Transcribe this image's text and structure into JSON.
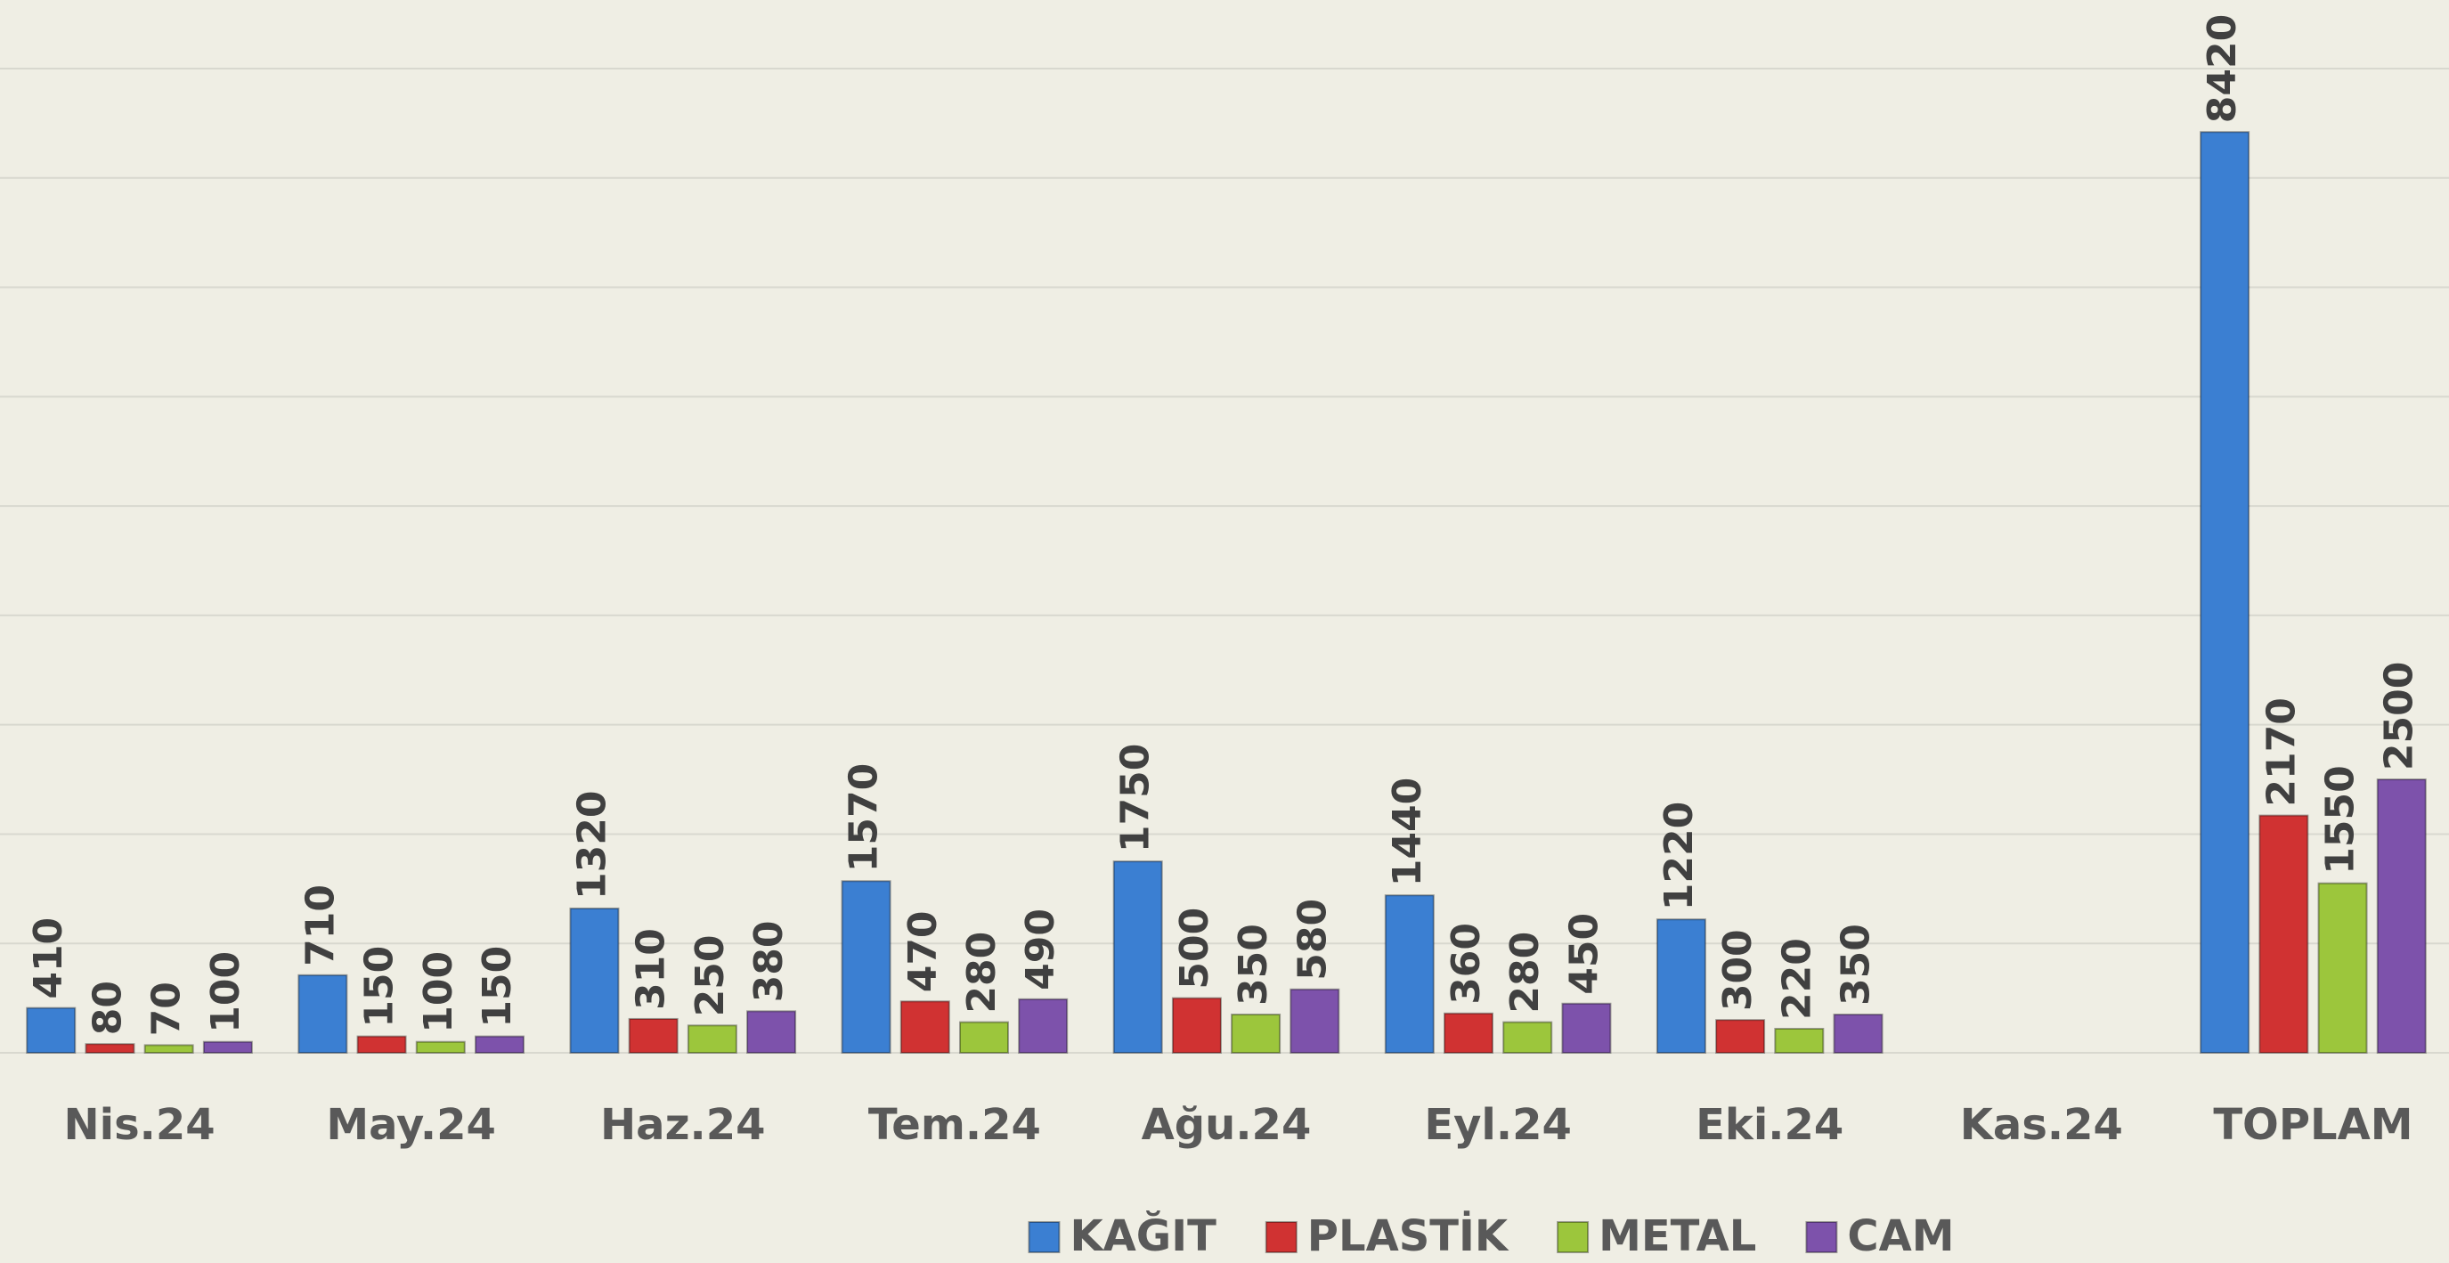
{
  "chart_data": {
    "type": "bar",
    "categories": [
      "Nis.24",
      "May.24",
      "Haz.24",
      "Tem.24",
      "Ağu.24",
      "Eyl.24",
      "Eki.24",
      "Kas.24",
      "TOPLAM"
    ],
    "series": [
      {
        "name": "KAĞIT",
        "color": "#3b7fd2",
        "values": [
          410,
          710,
          1320,
          1570,
          1750,
          1440,
          1220,
          null,
          8420
        ]
      },
      {
        "name": "PLASTİK",
        "color": "#d03232",
        "values": [
          80,
          150,
          310,
          470,
          500,
          360,
          300,
          null,
          2170
        ]
      },
      {
        "name": "METAL",
        "color": "#9cc63c",
        "values": [
          70,
          100,
          250,
          280,
          350,
          280,
          220,
          null,
          1550
        ]
      },
      {
        "name": "CAM",
        "color": "#7d52ab",
        "values": [
          100,
          150,
          380,
          490,
          580,
          450,
          350,
          null,
          2500
        ]
      }
    ],
    "ylim": [
      0,
      9000
    ],
    "gridlines": [
      0,
      1000,
      2000,
      3000,
      4000,
      5000,
      6000,
      7000,
      8000,
      9000
    ],
    "grid": true,
    "legend": "bottom"
  }
}
